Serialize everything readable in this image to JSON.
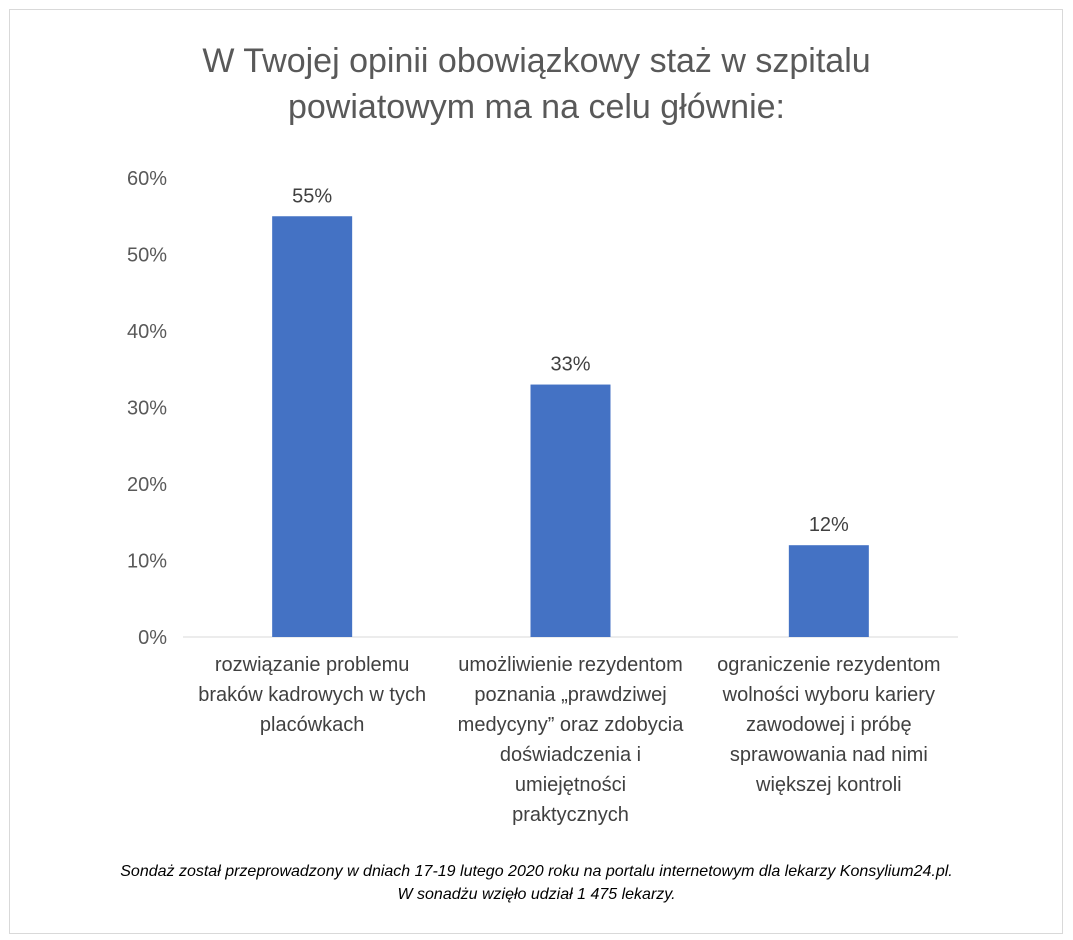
{
  "chart_data": {
    "type": "bar",
    "title_lines": [
      "W Twojej opinii obowiązkowy staż w szpitalu",
      "powiatowym ma na celu głównie:"
    ],
    "categories": [
      [
        "rozwiązanie problemu",
        "braków kadrowych w tych",
        "placówkach"
      ],
      [
        "umożliwienie rezydentom",
        "poznania „prawdziwej",
        "medycyny” oraz zdobycia",
        "doświadczenia i",
        "umiejętności",
        "praktycznych"
      ],
      [
        "ograniczenie rezydentom",
        "wolności wyboru kariery",
        "zawodowej i próbę",
        "sprawowania nad nimi",
        "większej kontroli"
      ]
    ],
    "values": [
      55,
      33,
      12
    ],
    "data_labels": [
      "55%",
      "33%",
      "12%"
    ],
    "ylim": [
      0,
      60
    ],
    "yticks": [
      0,
      10,
      20,
      30,
      40,
      50,
      60
    ],
    "ytick_labels": [
      "0%",
      "10%",
      "20%",
      "30%",
      "40%",
      "50%",
      "60%"
    ],
    "bar_color": "#4472c4",
    "grid": false,
    "legend": "none"
  },
  "footnote_lines": [
    "Sondaż został przeprowadzony w dniach 17-19 lutego 2020 roku na portalu internetowym dla lekarzy Konsylium24.pl.",
    "W sonadżu wzięło udział 1 475 lekarzy."
  ]
}
